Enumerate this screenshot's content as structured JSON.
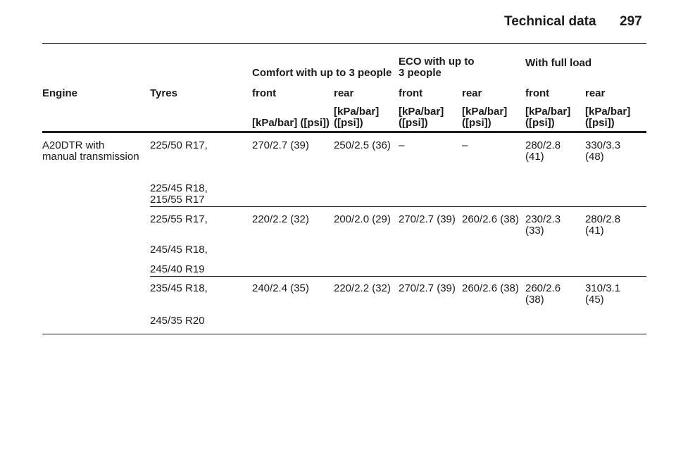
{
  "header": {
    "title": "Technical data",
    "page": "297"
  },
  "table": {
    "groups": [
      {
        "label": "Comfort with up to 3 people",
        "col": 2
      },
      {
        "label": "ECO with up to 3 people",
        "col": 4
      },
      {
        "label": "With full load",
        "col": 6
      }
    ],
    "columns": [
      "Engine",
      "Tyres",
      "front",
      "rear",
      "front",
      "rear",
      "front",
      "rear"
    ],
    "units": [
      "[kPa/bar] ([psi])",
      "[kPa/bar] ([psi])",
      "[kPa/bar] ([psi])",
      "[kPa/bar] ([psi])",
      "[kPa/bar] ([psi])",
      "[kPa/bar] ([psi])"
    ],
    "rows": [
      {
        "engine": "A20DTR with manual transmission",
        "tyres": [
          "225/50 R17,",
          "225/45 R18,",
          "215/55 R17"
        ],
        "values": [
          "270/2.7 (39)",
          "250/2.5 (36)",
          "–",
          "–",
          "280/2.8 (41)",
          "330/3.3 (48)"
        ]
      },
      {
        "tyres": [
          "225/55 R17,",
          "245/45 R18,",
          "245/40 R19"
        ],
        "values": [
          "220/2.2 (32)",
          "200/2.0 (29)",
          "270/2.7 (39)",
          "260/2.6 (38)",
          "230/2.3 (33)",
          "280/2.8 (41)"
        ]
      },
      {
        "tyres": [
          "235/45 R18,",
          "245/35 R20"
        ],
        "values": [
          "240/2.4 (35)",
          "220/2.2 (32)",
          "270/2.7 (39)",
          "260/2.6 (38)",
          "260/2.6 (38)",
          "310/3.1 (45)"
        ]
      }
    ]
  }
}
